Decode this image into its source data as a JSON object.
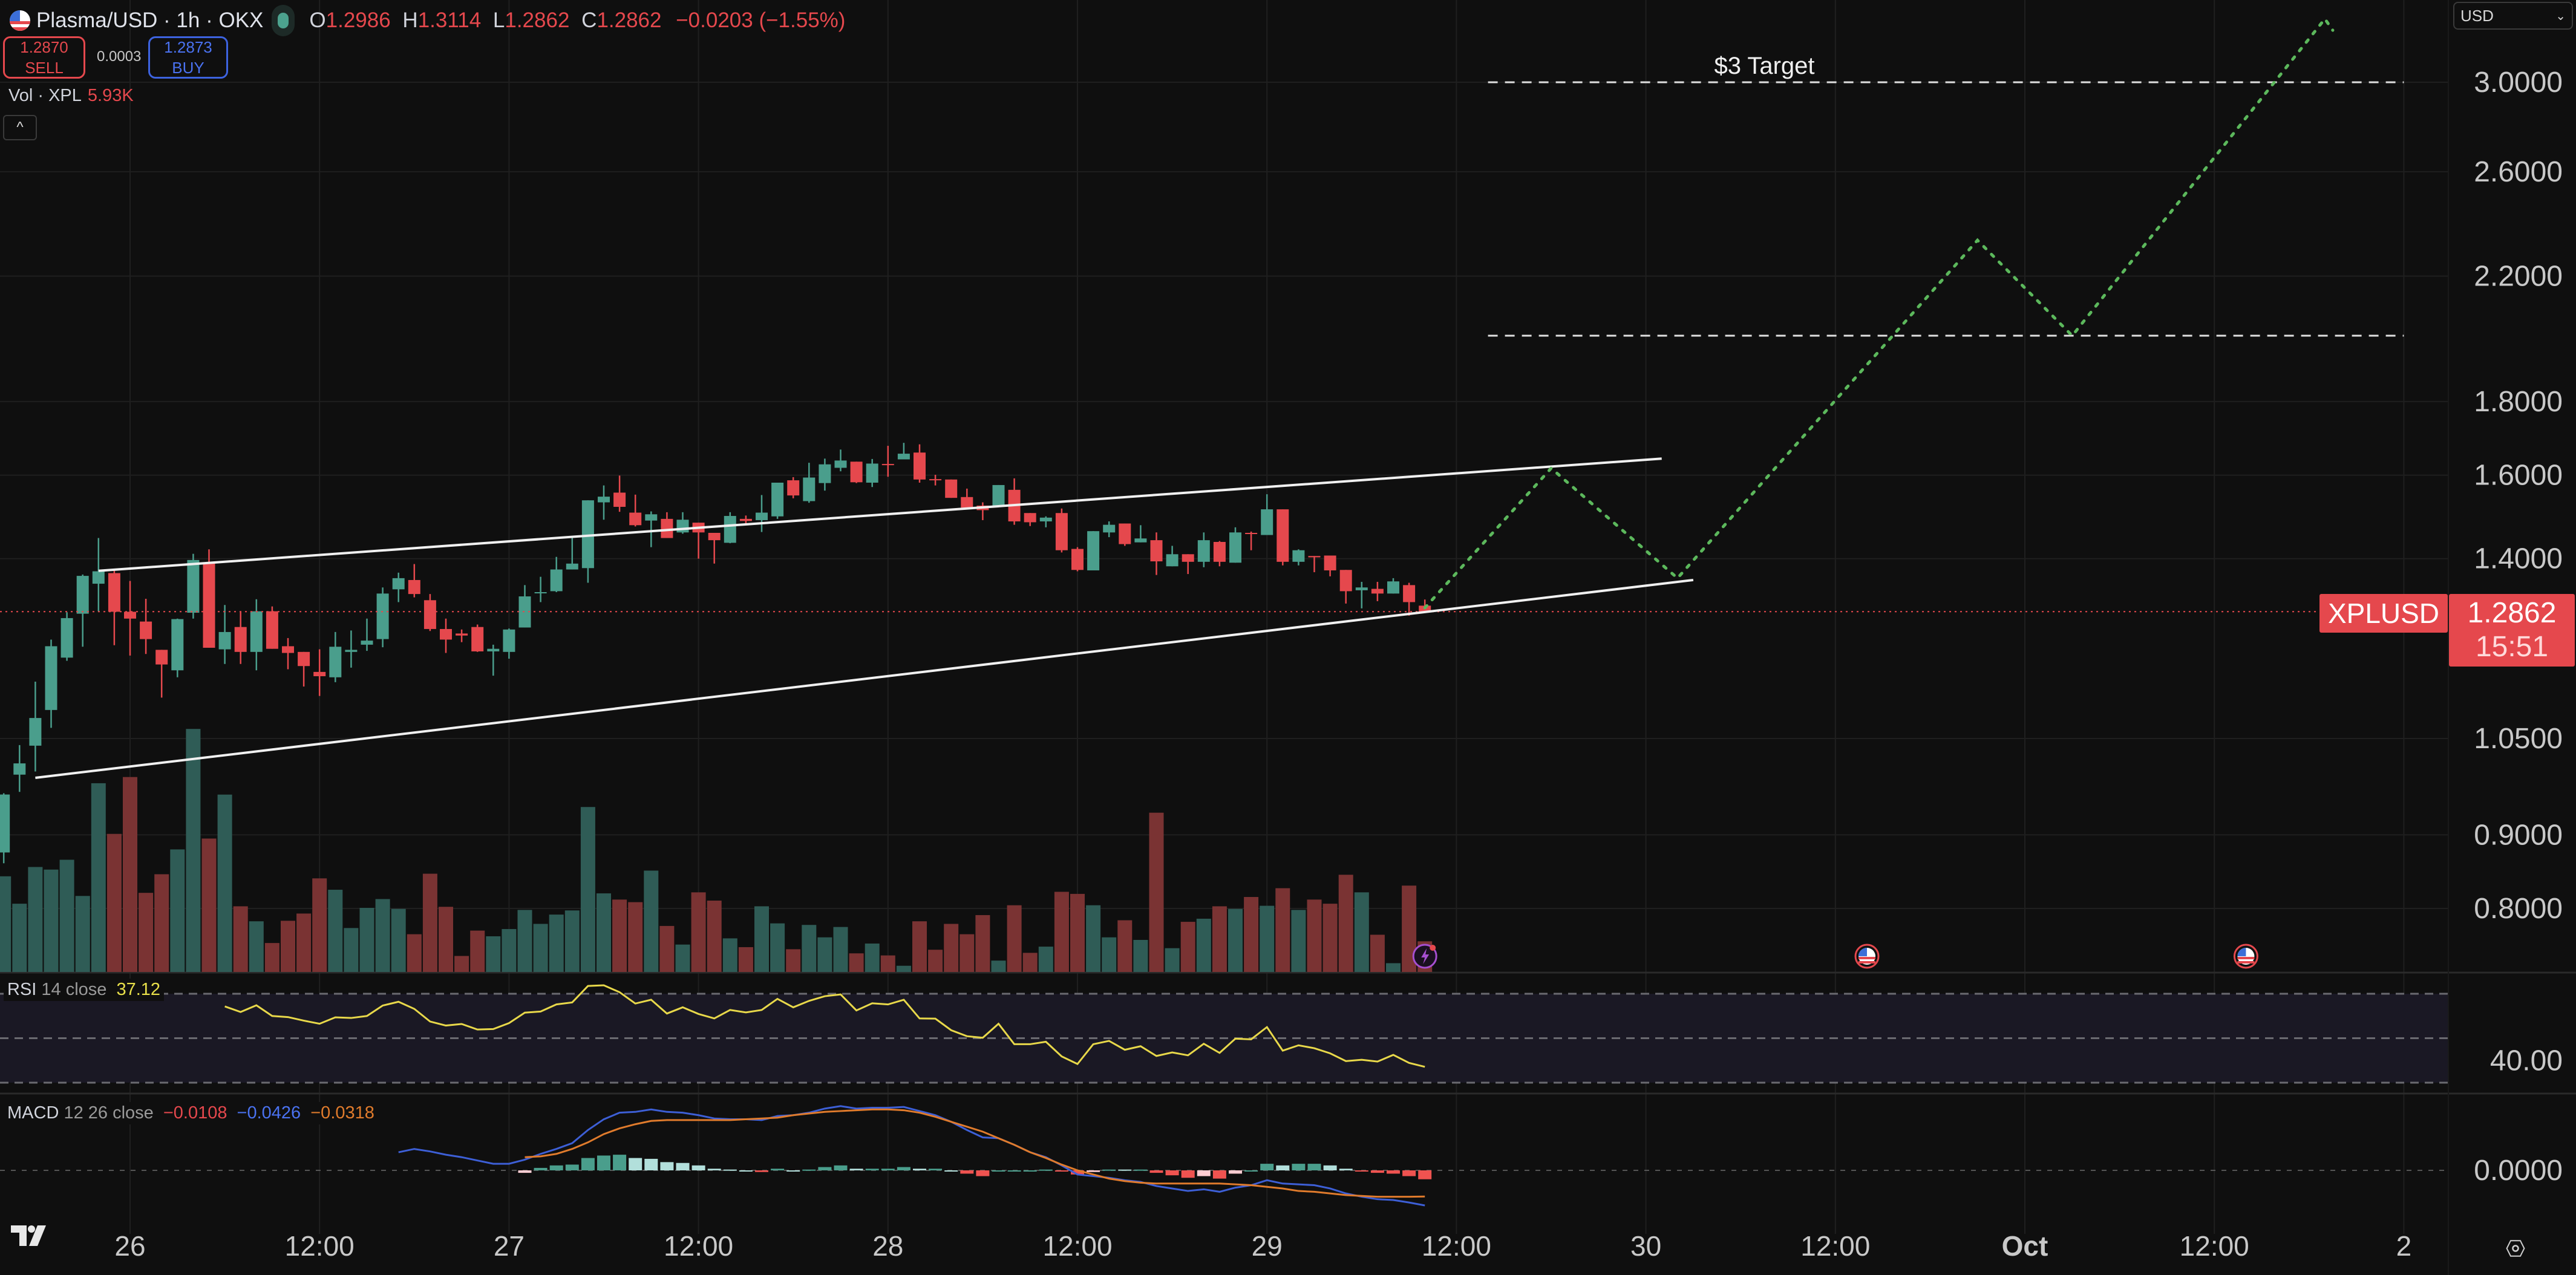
{
  "header": {
    "symbol": "Plasma/USD · 1h · OKX",
    "open_label": "O",
    "open": "1.2986",
    "high_label": "H",
    "high": "1.3114",
    "low_label": "L",
    "low": "1.2862",
    "close_label": "C",
    "close": "1.2862",
    "change": "−0.0203 (−1.55%)",
    "flag_icon": "us-flag-icon",
    "market_status": "open"
  },
  "trade": {
    "sell_price": "1.2870",
    "sell_label": "SELL",
    "spread": "0.0003",
    "buy_price": "1.2873",
    "buy_label": "BUY"
  },
  "volume_legend": {
    "label": "Vol · XPL",
    "value": "5.93K"
  },
  "currency_select": "USD",
  "price_label": {
    "symbol": "XPLUSD",
    "price": "1.2862",
    "countdown": "15:51"
  },
  "rsi_legend": {
    "name": "RSI",
    "params": "14 close",
    "value": "37.12",
    "axis_label": "40.00"
  },
  "macd_legend": {
    "name": "MACD",
    "params": "12 26 close",
    "hist": "−0.0108",
    "macd": "−0.0426",
    "signal": "−0.0318",
    "axis_label": "0.0000"
  },
  "colors": {
    "up": "#4a9e8c",
    "down": "#e5484d",
    "vol_up": "#2f5c56",
    "vol_down": "#7a3333",
    "rsi": "#e8d84a",
    "macd": "#3d5fd6",
    "signal": "#e07b2c",
    "hist_up_strong": "#4a9e8c",
    "hist_up_weak": "#b2dfdb",
    "hist_down_strong": "#ef5350",
    "hist_down_weak": "#ffcdd2",
    "projection": "#5cb85c",
    "accent": "#e5484d"
  },
  "chart_data": {
    "type": "candlestick",
    "interval": "1h",
    "scale": "log",
    "grid": true,
    "price_axis": {
      "ticks": [
        "3.0000",
        "2.6000",
        "2.2000",
        "1.8000",
        "1.6000",
        "1.4000",
        "1.0500",
        "0.9000",
        "0.8000"
      ]
    },
    "time_axis": [
      {
        "label": "26",
        "t": "Sep 26 00:00"
      },
      {
        "label": "12:00",
        "t": "Sep 26 12:00"
      },
      {
        "label": "27",
        "t": "Sep 27 00:00"
      },
      {
        "label": "12:00",
        "t": "Sep 27 12:00"
      },
      {
        "label": "28",
        "t": "Sep 28 00:00"
      },
      {
        "label": "12:00",
        "t": "Sep 28 12:00"
      },
      {
        "label": "29",
        "t": "Sep 29 00:00"
      },
      {
        "label": "12:00",
        "t": "Sep 29 12:00"
      },
      {
        "label": "30",
        "t": "Sep 30 00:00"
      },
      {
        "label": "12:00",
        "t": "Sep 30 12:00"
      },
      {
        "label": "Oct",
        "t": "Oct 1 00:00",
        "bold": true
      },
      {
        "label": "12:00",
        "t": "Oct 1 12:00"
      },
      {
        "label": "2",
        "t": "Oct 2 00:00"
      }
    ],
    "candles_start": "Sep 25 16:00",
    "candles": [
      [
        0.875,
        0.962,
        0.86,
        0.96
      ],
      [
        0.991,
        1.039,
        0.964,
        1.009
      ],
      [
        1.038,
        1.15,
        0.996,
        1.085
      ],
      [
        1.099,
        1.23,
        1.068,
        1.217
      ],
      [
        1.195,
        1.285,
        1.189,
        1.273
      ],
      [
        1.282,
        1.365,
        1.216,
        1.362
      ],
      [
        1.345,
        1.447,
        1.287,
        1.372
      ],
      [
        1.368,
        1.375,
        1.219,
        1.286
      ],
      [
        1.286,
        1.351,
        1.199,
        1.272
      ],
      [
        1.266,
        1.313,
        1.202,
        1.231
      ],
      [
        1.21,
        1.21,
        1.121,
        1.182
      ],
      [
        1.171,
        1.272,
        1.158,
        1.271
      ],
      [
        1.284,
        1.411,
        1.272,
        1.397
      ],
      [
        1.39,
        1.421,
        1.214,
        1.214
      ],
      [
        1.211,
        1.3,
        1.183,
        1.245
      ],
      [
        1.255,
        1.287,
        1.183,
        1.206
      ],
      [
        1.206,
        1.312,
        1.171,
        1.287
      ],
      [
        1.287,
        1.297,
        1.212,
        1.212
      ],
      [
        1.217,
        1.233,
        1.173,
        1.204
      ],
      [
        1.206,
        1.206,
        1.141,
        1.179
      ],
      [
        1.168,
        1.211,
        1.124,
        1.16
      ],
      [
        1.158,
        1.245,
        1.149,
        1.216
      ],
      [
        1.206,
        1.248,
        1.176,
        1.21
      ],
      [
        1.22,
        1.272,
        1.208,
        1.228
      ],
      [
        1.231,
        1.337,
        1.215,
        1.324
      ],
      [
        1.333,
        1.369,
        1.306,
        1.357
      ],
      [
        1.353,
        1.388,
        1.316,
        1.323
      ],
      [
        1.31,
        1.323,
        1.247,
        1.251
      ],
      [
        1.251,
        1.272,
        1.204,
        1.23
      ],
      [
        1.242,
        1.25,
        1.225,
        1.238
      ],
      [
        1.255,
        1.26,
        1.206,
        1.207
      ],
      [
        1.207,
        1.22,
        1.161,
        1.212
      ],
      [
        1.206,
        1.252,
        1.193,
        1.25
      ],
      [
        1.254,
        1.342,
        1.254,
        1.318
      ],
      [
        1.325,
        1.36,
        1.306,
        1.327
      ],
      [
        1.329,
        1.404,
        1.327,
        1.376
      ],
      [
        1.376,
        1.452,
        1.376,
        1.389
      ],
      [
        1.379,
        1.537,
        1.347,
        1.537
      ],
      [
        1.532,
        1.574,
        1.49,
        1.546
      ],
      [
        1.556,
        1.599,
        1.509,
        1.521
      ],
      [
        1.507,
        1.551,
        1.474,
        1.477
      ],
      [
        1.488,
        1.51,
        1.426,
        1.503
      ],
      [
        1.492,
        1.508,
        1.447,
        1.447
      ],
      [
        1.46,
        1.508,
        1.457,
        1.49
      ],
      [
        1.483,
        1.483,
        1.4,
        1.46
      ],
      [
        1.459,
        1.459,
        1.389,
        1.442
      ],
      [
        1.436,
        1.508,
        1.435,
        1.499
      ],
      [
        1.492,
        1.5,
        1.48,
        1.487
      ],
      [
        1.489,
        1.55,
        1.461,
        1.507
      ],
      [
        1.498,
        1.581,
        1.492,
        1.581
      ],
      [
        1.587,
        1.595,
        1.542,
        1.549
      ],
      [
        1.535,
        1.632,
        1.531,
        1.594
      ],
      [
        1.58,
        1.643,
        1.561,
        1.628
      ],
      [
        1.619,
        1.667,
        1.61,
        1.638
      ],
      [
        1.635,
        1.635,
        1.58,
        1.582
      ],
      [
        1.581,
        1.642,
        1.57,
        1.63
      ],
      [
        1.629,
        1.677,
        1.596,
        1.627
      ],
      [
        1.641,
        1.685,
        1.641,
        1.656
      ],
      [
        1.659,
        1.681,
        1.581,
        1.589
      ],
      [
        1.59,
        1.601,
        1.574,
        1.589
      ],
      [
        1.589,
        1.589,
        1.543,
        1.543
      ],
      [
        1.545,
        1.566,
        1.519,
        1.519
      ],
      [
        1.524,
        1.532,
        1.489,
        1.513
      ],
      [
        1.522,
        1.575,
        1.522,
        1.575
      ],
      [
        1.563,
        1.592,
        1.478,
        1.486
      ],
      [
        1.506,
        1.506,
        1.475,
        1.484
      ],
      [
        1.486,
        1.498,
        1.472,
        1.495
      ],
      [
        1.506,
        1.517,
        1.414,
        1.419
      ],
      [
        1.422,
        1.426,
        1.372,
        1.375
      ],
      [
        1.374,
        1.463,
        1.374,
        1.463
      ],
      [
        1.46,
        1.486,
        1.449,
        1.478
      ],
      [
        1.481,
        1.481,
        1.429,
        1.433
      ],
      [
        1.437,
        1.477,
        1.437,
        1.446
      ],
      [
        1.442,
        1.46,
        1.364,
        1.394
      ],
      [
        1.383,
        1.429,
        1.383,
        1.41
      ],
      [
        1.41,
        1.41,
        1.366,
        1.393
      ],
      [
        1.393,
        1.46,
        1.381,
        1.442
      ],
      [
        1.438,
        1.44,
        1.383,
        1.393
      ],
      [
        1.391,
        1.472,
        1.391,
        1.46
      ],
      [
        1.459,
        1.462,
        1.419,
        1.457
      ],
      [
        1.454,
        1.552,
        1.454,
        1.515
      ],
      [
        1.515,
        1.515,
        1.385,
        1.393
      ],
      [
        1.393,
        1.421,
        1.385,
        1.419
      ],
      [
        1.406,
        1.406,
        1.37,
        1.403
      ],
      [
        1.407,
        1.407,
        1.361,
        1.374
      ],
      [
        1.375,
        1.375,
        1.303,
        1.329
      ],
      [
        1.331,
        1.349,
        1.293,
        1.337
      ],
      [
        1.334,
        1.349,
        1.308,
        1.324
      ],
      [
        1.324,
        1.357,
        1.324,
        1.35
      ],
      [
        1.342,
        1.347,
        1.278,
        1.306
      ],
      [
        1.2986,
        1.3114,
        1.2862,
        1.2862
      ]
    ],
    "volume_unit": "K",
    "volumes": [
      18.5,
      13.2,
      20.3,
      19.8,
      21.7,
      14.7,
      36.5,
      26.7,
      37.7,
      15.3,
      18.9,
      23.7,
      47.0,
      25.8,
      34.3,
      12.7,
      9.8,
      5.6,
      9.9,
      11.3,
      18.1,
      15.9,
      8.5,
      12.4,
      14.1,
      12.2,
      7.3,
      19.0,
      12.6,
      3.1,
      8.0,
      6.9,
      8.3,
      12.0,
      9.3,
      11.1,
      11.9,
      31.9,
      15.2,
      14.0,
      13.5,
      19.6,
      8.9,
      5.3,
      15.4,
      13.8,
      6.5,
      4.8,
      12.7,
      9.4,
      4.4,
      9.1,
      6.7,
      8.7,
      3.6,
      5.5,
      3.2,
      1.2,
      9.8,
      4.3,
      9.3,
      7.3,
      11.0,
      2.2,
      12.9,
      3.7,
      4.9,
      15.5,
      15.1,
      12.9,
      6.7,
      10.0,
      6.2,
      30.8,
      4.6,
      9.7,
      10.3,
      12.7,
      12.2,
      14.5,
      12.8,
      16.2,
      12.0,
      14.0,
      13.2,
      18.8,
      15.4,
      7.2,
      1.7,
      16.7,
      5.93
    ],
    "last_price": 1.2862,
    "trend_lines": [
      {
        "from": [
          "Sep 25 22:00",
          1.373
        ],
        "to": [
          "Sep 30 01:00",
          1.643
        ]
      },
      {
        "from": [
          "Sep 25 18:00",
          0.986
        ],
        "to": [
          "Sep 30 03:00",
          1.353
        ]
      }
    ],
    "projection_path": [
      [
        "Sep 29 10:00",
        1.294
      ],
      [
        "Sep 29 18:00",
        1.618
      ],
      [
        "Sep 30 02:00",
        1.357
      ],
      [
        "Sep 30 21:00",
        2.33
      ],
      [
        "Oct 1 03:00",
        2.0
      ],
      [
        "Oct 1 19:00",
        3.32
      ],
      [
        "Oct 1 19:30",
        3.26
      ]
    ],
    "horizontal_levels": [
      {
        "price": 3.0,
        "from": "Sep 29 14:00",
        "to": "Oct 2 00:00",
        "label": "$3 Target"
      },
      {
        "price": 2.0,
        "from": "Sep 29 14:00",
        "to": "Oct 2 00:00",
        "label": ""
      }
    ],
    "events": [
      {
        "t": "Sep 29 10:00",
        "icon": "lightning-icon"
      },
      {
        "t": "Sep 30 14:00",
        "icon": "us-flag-icon"
      },
      {
        "t": "Oct 1 14:00",
        "icon": "us-flag-icon"
      }
    ],
    "rsi": {
      "levels": [
        70,
        50,
        30
      ],
      "start": "Sep 26 06:00",
      "values": [
        64.3,
        61.8,
        64.8,
        60,
        59.5,
        57.9,
        56.5,
        59.4,
        59.1,
        60,
        64.7,
        66.4,
        63.2,
        57.5,
        55.7,
        56.4,
        53.9,
        54.1,
        56.8,
        61.5,
        62,
        65.2,
        66.1,
        73.5,
        73.8,
        70.7,
        65.6,
        67.3,
        61.1,
        63.9,
        60.9,
        58.9,
        62.7,
        61.6,
        62.7,
        67.7,
        63.9,
        66.8,
        68.9,
        69.7,
        62.5,
        65.7,
        65.2,
        67.3,
        58.9,
        58.8,
        53.6,
        50.9,
        50.2,
        56.5,
        47.3,
        47.3,
        48.4,
        41.8,
        38.4,
        47.3,
        48.8,
        44.8,
        46.4,
        42,
        43.6,
        42.3,
        47.5,
        43.4,
        49.8,
        49.5,
        55,
        44.4,
        46.8,
        45.5,
        43.2,
        39.7,
        40.3,
        39.5,
        42.5,
        38.9,
        37.12
      ]
    },
    "macd": {
      "start": "Sep 26 17:00",
      "values": [
        0.022,
        0.026,
        0.023,
        0.019,
        0.016,
        0.012,
        0.008,
        0.008,
        0.013,
        0.02,
        0.026,
        0.033,
        0.049,
        0.062,
        0.07,
        0.071,
        0.074,
        0.071,
        0.07,
        0.067,
        0.063,
        0.062,
        0.062,
        0.061,
        0.066,
        0.067,
        0.07,
        0.075,
        0.078,
        0.075,
        0.076,
        0.076,
        0.077,
        0.072,
        0.067,
        0.059,
        0.049,
        0.04,
        0.039,
        0.031,
        0.022,
        0.016,
        0.006,
        -0.005,
        -0.007,
        -0.009,
        -0.012,
        -0.014,
        -0.019,
        -0.022,
        -0.025,
        -0.023,
        -0.026,
        -0.021,
        -0.018,
        -0.012,
        -0.016,
        -0.017,
        -0.018,
        -0.022,
        -0.028,
        -0.032,
        -0.035,
        -0.036,
        -0.039,
        -0.0426
      ],
      "signal_start": "Sep 27 01:00",
      "signal": [
        0.016,
        0.017,
        0.02,
        0.026,
        0.034,
        0.044,
        0.051,
        0.056,
        0.06,
        0.061,
        0.061,
        0.061,
        0.061,
        0.061,
        0.062,
        0.063,
        0.064,
        0.067,
        0.069,
        0.071,
        0.072,
        0.073,
        0.074,
        0.074,
        0.073,
        0.07,
        0.065,
        0.059,
        0.053,
        0.047,
        0.039,
        0.031,
        0.022,
        0.015,
        0.007,
        0.0,
        -0.005,
        -0.01,
        -0.013,
        -0.015,
        -0.016,
        -0.016,
        -0.016,
        -0.016,
        -0.016,
        -0.017,
        -0.018,
        -0.02,
        -0.022,
        -0.025,
        -0.026,
        -0.028,
        -0.03,
        -0.031,
        -0.032,
        -0.032,
        -0.032,
        -0.0318
      ]
    }
  }
}
